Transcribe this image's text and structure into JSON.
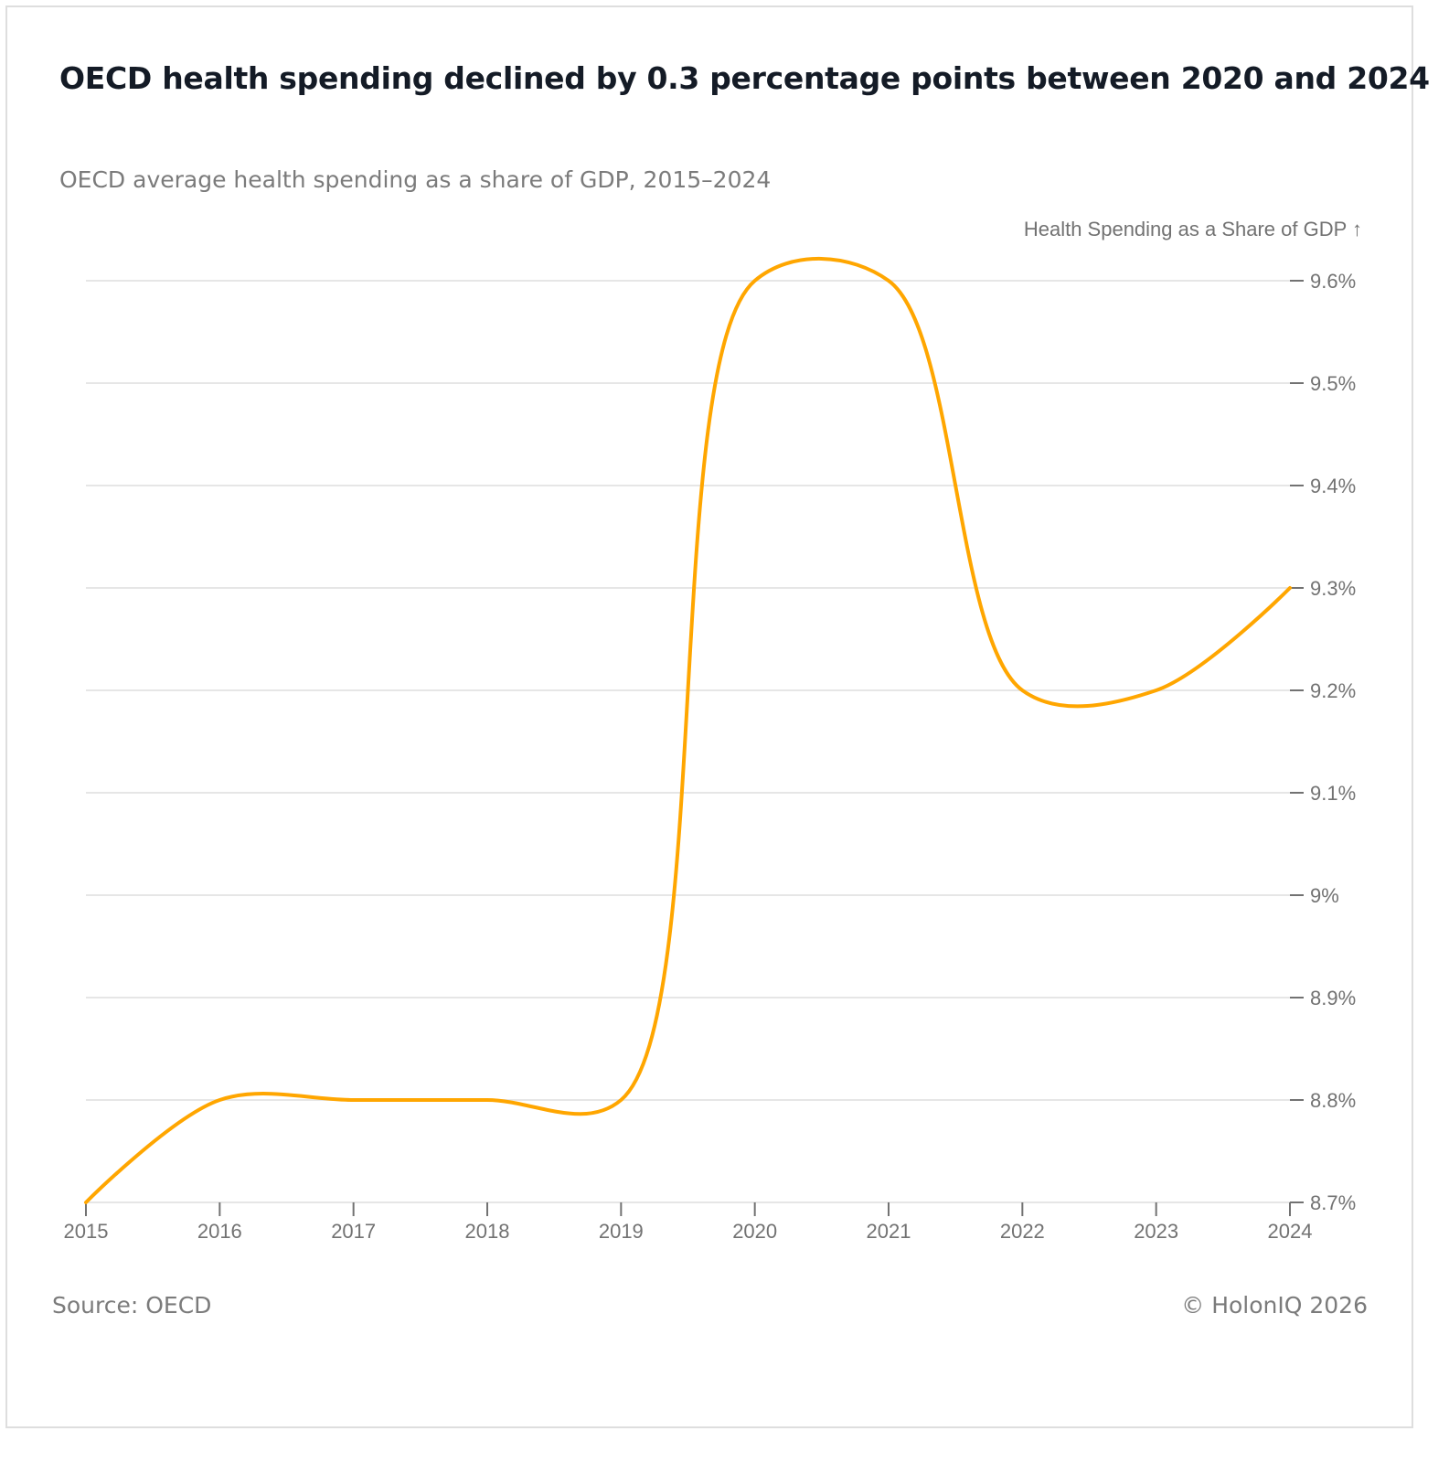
{
  "header": {
    "title": "OECD health spending declined by 0.3 percentage points between 2020 and 2024",
    "subtitle": "OECD average health spending as a share of GDP, 2015–2024"
  },
  "footer": {
    "source": "Source: OECD",
    "copyright": "© HolonIQ 2026"
  },
  "chart_data": {
    "type": "line",
    "title": "OECD health spending declined by 0.3 percentage points between 2020 and 2024",
    "subtitle": "OECD average health spending as a share of GDP, 2015–2024",
    "xlabel": "",
    "ylabel": "Health Spending as a Share of GDP ↑",
    "x": [
      2015,
      2016,
      2017,
      2018,
      2019,
      2020,
      2021,
      2022,
      2023,
      2024
    ],
    "x_tick_labels": [
      "2015",
      "2016",
      "2017",
      "2018",
      "2019",
      "2020",
      "2021",
      "2022",
      "2023",
      "2024"
    ],
    "series": [
      {
        "name": "Health Spending as a Share of GDP",
        "color": "#FFA600",
        "values": [
          8.7,
          8.8,
          8.8,
          8.8,
          8.8,
          9.6,
          9.6,
          9.2,
          9.2,
          9.3
        ]
      }
    ],
    "y_ticks": [
      8.7,
      8.8,
      8.9,
      9.0,
      9.1,
      9.2,
      9.3,
      9.4,
      9.5,
      9.6
    ],
    "y_tick_labels": [
      "8.7%",
      "8.8%",
      "8.9%",
      "9%",
      "9.1%",
      "9.2%",
      "9.3%",
      "9.4%",
      "9.5%",
      "9.6%"
    ],
    "ylim": [
      8.7,
      9.6
    ],
    "xlim": [
      2015,
      2024
    ],
    "y_axis_position": "right",
    "grid": true,
    "legend": "none",
    "source": "OECD"
  }
}
